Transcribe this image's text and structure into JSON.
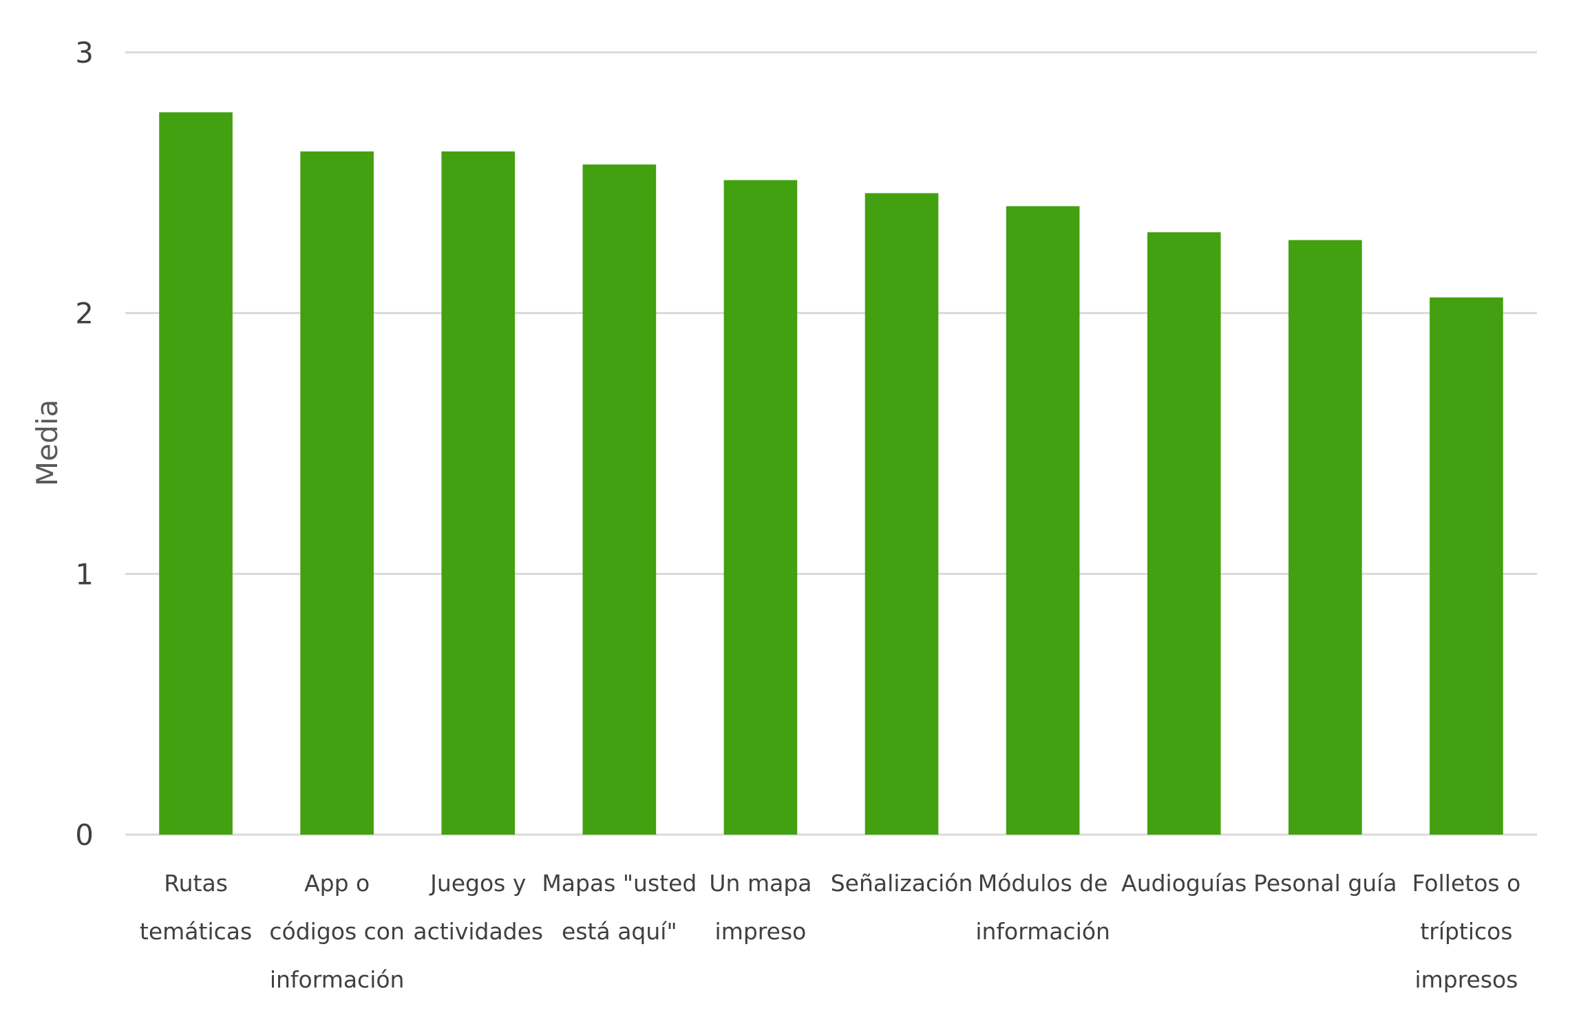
{
  "chart_data": {
    "type": "bar",
    "title": "",
    "xlabel": "",
    "ylabel": "Media",
    "ylim": [
      0,
      3
    ],
    "yticks": [
      "0",
      "1",
      "2",
      "3"
    ],
    "grid": true,
    "legend": "none",
    "bar_color": "#43A010",
    "categories": [
      [
        "Rutas",
        "temáticas"
      ],
      [
        "App o",
        "códigos con",
        "información"
      ],
      [
        "Juegos y",
        "actividades"
      ],
      [
        "Mapas \"usted",
        "está aquí\""
      ],
      [
        "Un mapa",
        "impreso"
      ],
      [
        "Señalización"
      ],
      [
        "Módulos de",
        "información"
      ],
      [
        "Audioguías"
      ],
      [
        "Pesonal guía"
      ],
      [
        "Folletos o",
        "trípticos",
        "impresos"
      ]
    ],
    "values": [
      2.77,
      2.62,
      2.62,
      2.57,
      2.51,
      2.46,
      2.41,
      2.31,
      2.28,
      2.06
    ]
  }
}
